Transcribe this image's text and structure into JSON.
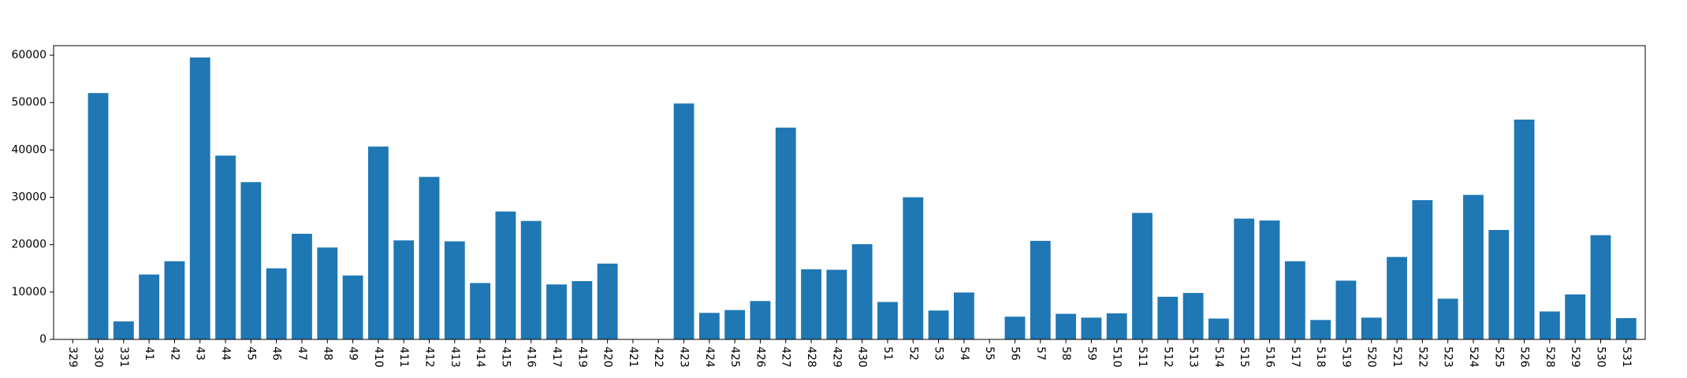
{
  "chart_data": {
    "type": "bar",
    "title": "",
    "xlabel": "",
    "ylabel": "",
    "ylim": [
      0,
      62000
    ],
    "y_ticks": [
      0,
      10000,
      20000,
      30000,
      40000,
      50000,
      60000
    ],
    "grid": false,
    "bar_color": "#1f77b4",
    "categories": [
      "329",
      "330",
      "331",
      "41",
      "42",
      "43",
      "44",
      "45",
      "46",
      "47",
      "48",
      "49",
      "410",
      "411",
      "412",
      "413",
      "414",
      "415",
      "416",
      "417",
      "419",
      "420",
      "421",
      "422",
      "423",
      "424",
      "425",
      "426",
      "427",
      "428",
      "429",
      "430",
      "51",
      "52",
      "53",
      "54",
      "55",
      "56",
      "57",
      "58",
      "59",
      "510",
      "511",
      "512",
      "513",
      "514",
      "515",
      "516",
      "517",
      "518",
      "519",
      "520",
      "521",
      "522",
      "523",
      "524",
      "525",
      "526",
      "528",
      "529",
      "530",
      "531"
    ],
    "values": [
      0,
      52000,
      3800,
      13700,
      16500,
      59500,
      38800,
      33200,
      15000,
      22300,
      19400,
      13500,
      40700,
      20900,
      34300,
      20700,
      11900,
      27000,
      25000,
      11600,
      12300,
      16000,
      0,
      0,
      49800,
      5600,
      6200,
      8100,
      44700,
      14800,
      14700,
      20100,
      7900,
      30000,
      6100,
      9900,
      0,
      4800,
      20800,
      5400,
      4600,
      5500,
      26700,
      9000,
      9800,
      4400,
      25500,
      25100,
      16500,
      4100,
      12400,
      4600,
      17400,
      29400,
      8600,
      30500,
      23100,
      46400,
      5900,
      9500,
      22000,
      4500
    ]
  }
}
